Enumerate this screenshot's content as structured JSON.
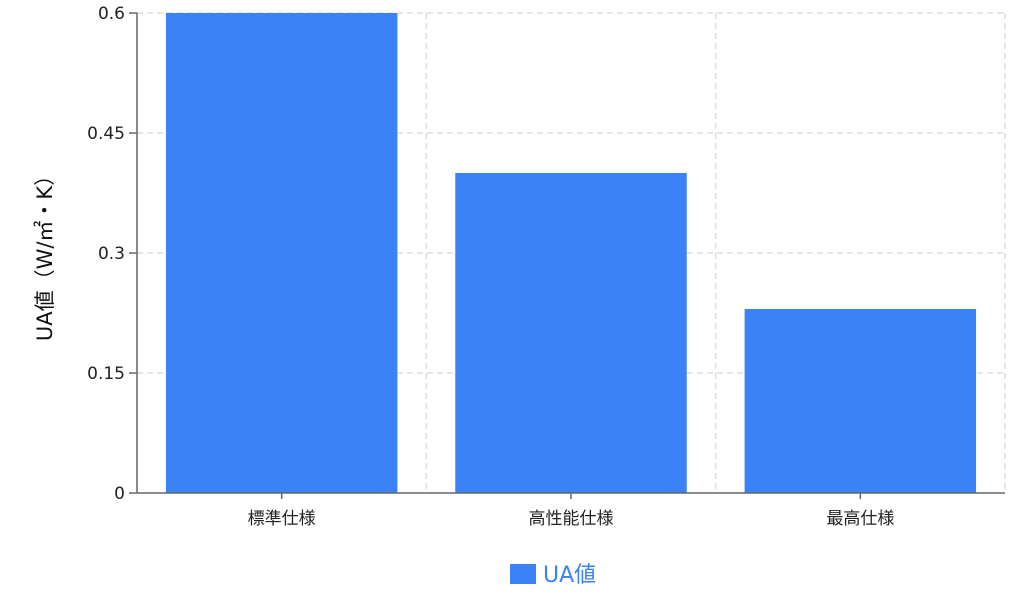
{
  "chart_data": {
    "type": "bar",
    "categories": [
      "標準仕様",
      "高性能仕様",
      "最高仕様"
    ],
    "series": [
      {
        "name": "UA値",
        "values": [
          0.6,
          0.4,
          0.23
        ],
        "color": "#3b82f6"
      }
    ],
    "title": "",
    "xlabel": "",
    "ylabel": "UA値（W/㎡・K）",
    "ylim": [
      0,
      0.6
    ],
    "yticks": [
      "0",
      "0.15",
      "0.3",
      "0.45",
      "0.6"
    ],
    "ytick_values": [
      0,
      0.15,
      0.3,
      0.45,
      0.6
    ],
    "grid": true,
    "legend": "bottom"
  }
}
